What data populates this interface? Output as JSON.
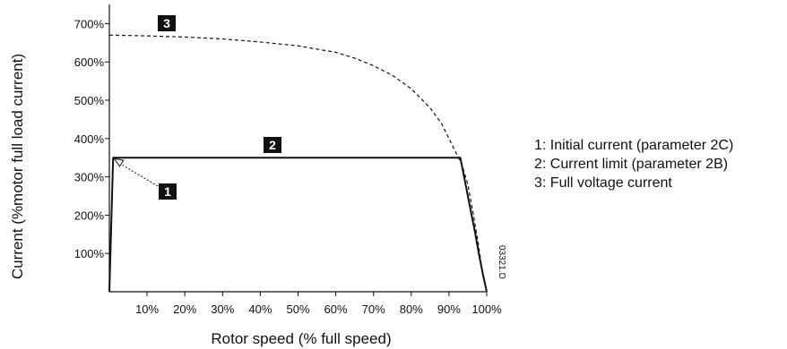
{
  "chart_data": {
    "type": "line",
    "xlabel": "Rotor speed (% full speed)",
    "ylabel": "Current (%motor full load current)",
    "xlim": [
      0,
      100
    ],
    "ylim": [
      0,
      750
    ],
    "x_ticks": [
      10,
      20,
      30,
      40,
      50,
      60,
      70,
      80,
      90,
      100
    ],
    "x_tick_labels": [
      "10%",
      "20%",
      "30%",
      "40%",
      "50%",
      "60%",
      "70%",
      "80%",
      "90%",
      "100%"
    ],
    "y_ticks": [
      100,
      200,
      300,
      400,
      500,
      600,
      700
    ],
    "y_tick_labels": [
      "100%",
      "200%",
      "300%",
      "400%",
      "500%",
      "600%",
      "700%"
    ],
    "grid": false,
    "series": [
      {
        "marker": "3",
        "style": "dashed",
        "x": [
          0,
          10,
          20,
          30,
          40,
          50,
          60,
          65,
          70,
          75,
          80,
          85,
          88,
          90,
          92,
          93.5,
          95,
          96.5,
          98,
          99
        ],
        "y": [
          670,
          668,
          665,
          660,
          652,
          642,
          625,
          610,
          590,
          565,
          530,
          480,
          440,
          400,
          360,
          330,
          280,
          200,
          110,
          40
        ]
      },
      {
        "marker": "2",
        "style": "solid",
        "x": [
          0,
          1,
          93,
          94,
          95,
          96,
          97,
          98,
          99,
          100
        ],
        "y": [
          0,
          350,
          350,
          300,
          250,
          200,
          150,
          95,
          45,
          0
        ]
      }
    ],
    "annotations": [
      {
        "marker": "1",
        "target_x": 1,
        "target_y": 350,
        "text": "1: Initial current (parameter 2C)"
      },
      {
        "marker": "2",
        "text": "2: Current limit (parameter 2B)"
      },
      {
        "marker": "3",
        "text": "3: Full voltage current"
      }
    ],
    "code": "03321.D"
  }
}
